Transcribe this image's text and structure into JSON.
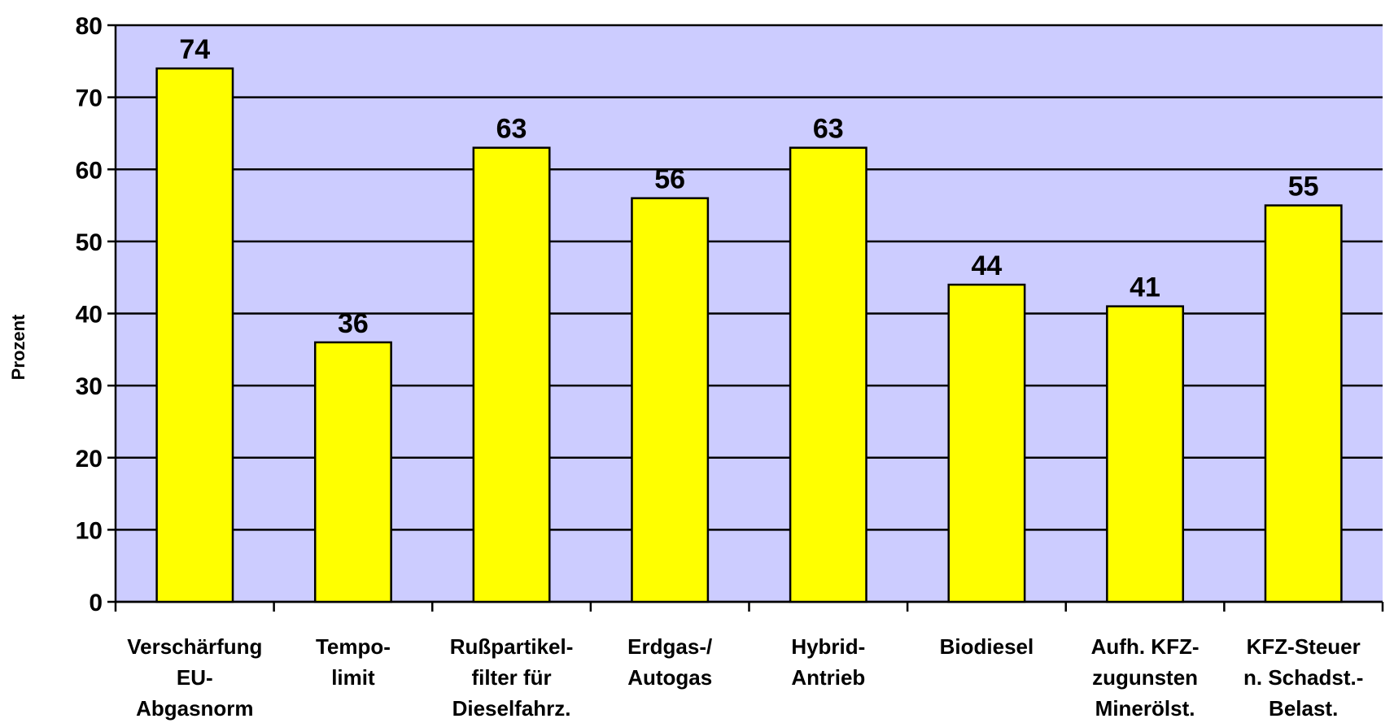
{
  "chart_data": {
    "type": "bar",
    "y_label": "Prozent",
    "categories": [
      [
        "Verschärfung",
        "EU-",
        "Abgasnorm"
      ],
      [
        "Tempo-",
        "limit"
      ],
      [
        "Rußpartikel-",
        "filter für",
        "Dieselfahrz."
      ],
      [
        "Erdgas-/",
        "Autogas"
      ],
      [
        "Hybrid-",
        "Antrieb"
      ],
      [
        "Biodiesel"
      ],
      [
        "Aufh. KFZ-",
        "zugunsten",
        "Minerölst."
      ],
      [
        "KFZ-Steuer",
        "n. Schadst.-",
        "Belast."
      ]
    ],
    "values": [
      74,
      36,
      63,
      56,
      63,
      44,
      41,
      55
    ],
    "color": "#ffff00",
    "background": "#ccccff",
    "ylim": [
      0,
      80
    ],
    "yticks": [
      0,
      10,
      20,
      30,
      40,
      50,
      60,
      70,
      80
    ],
    "grid": true
  }
}
